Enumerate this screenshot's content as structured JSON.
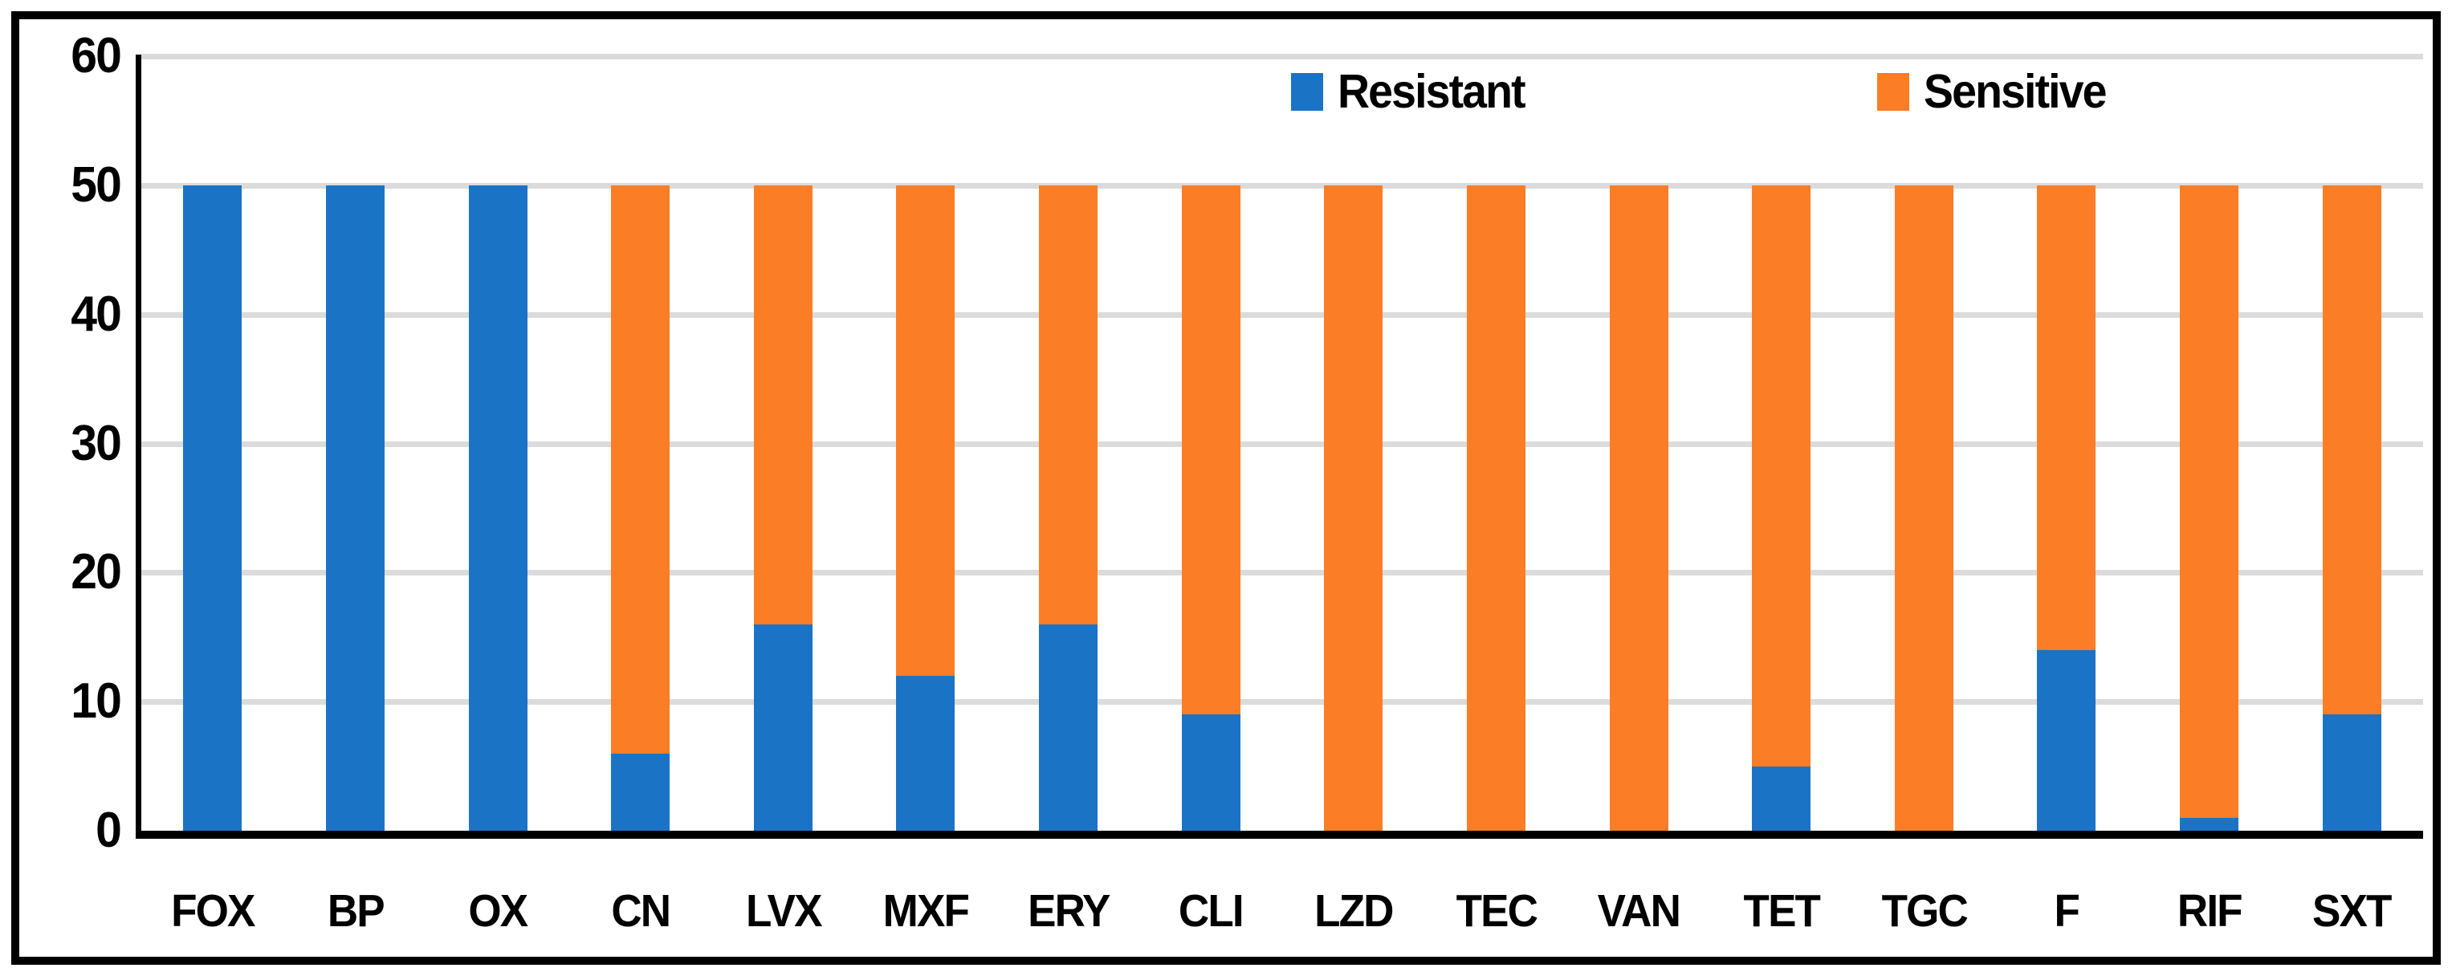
{
  "chart_data": {
    "type": "bar",
    "stacked": true,
    "title": "",
    "xlabel": "",
    "ylabel": "",
    "categories": [
      "FOX",
      "BP",
      "OX",
      "CN",
      "LVX",
      "MXF",
      "ERY",
      "CLI",
      "LZD",
      "TEC",
      "VAN",
      "TET",
      "TGC",
      "F",
      "RIF",
      "SXT"
    ],
    "series": [
      {
        "name": "Resistant",
        "color": "#1B73C6",
        "values": [
          50,
          50,
          50,
          6,
          16,
          12,
          16,
          9,
          0,
          0,
          0,
          5,
          0,
          14,
          1,
          9
        ]
      },
      {
        "name": "Sensitive",
        "color": "#FB7D25",
        "values": [
          0,
          0,
          0,
          44,
          34,
          38,
          34,
          41,
          50,
          50,
          50,
          45,
          50,
          36,
          49,
          41
        ]
      }
    ],
    "bar_total": 50,
    "ylim": [
      0,
      60
    ],
    "yticks": [
      0,
      10,
      20,
      30,
      40,
      50,
      60
    ],
    "grid": true,
    "gridline_color": "#DBDBDB",
    "axis_color": "#000000",
    "frame_color": "#000000",
    "background_color": "#FFFFFF",
    "legend_position": "top-inside",
    "legend_entries": [
      "Resistant",
      "Sensitive"
    ]
  }
}
